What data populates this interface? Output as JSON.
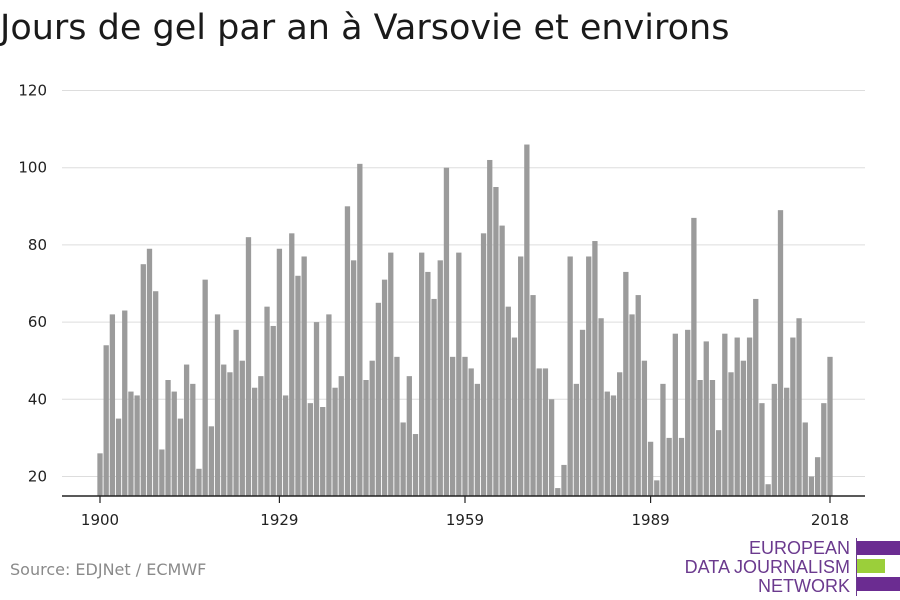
{
  "title": "Jours de gel par an à Varsovie et environs",
  "source": "Source: EDJNet / ECMWF",
  "logo": {
    "lines": [
      "EUROPEAN",
      "DATA JOURNALISM",
      "NETWORK"
    ],
    "colors": {
      "text": "#6b3a8e",
      "purple": "#6b2c91",
      "green": "#9bcf3a"
    }
  },
  "chart_data": {
    "type": "bar",
    "title": "Jours de gel par an à Varsovie et environs",
    "xlabel": "",
    "ylabel": "",
    "ylim": [
      15,
      120
    ],
    "yticks": [
      20,
      40,
      60,
      80,
      100,
      120
    ],
    "xticks": [
      1900,
      1929,
      1959,
      1989,
      2018
    ],
    "grid": true,
    "bar_color": "#9b9b9b",
    "x_start": 1900,
    "values": [
      26,
      54,
      62,
      35,
      63,
      42,
      41,
      75,
      79,
      68,
      27,
      45,
      42,
      35,
      49,
      44,
      22,
      71,
      33,
      62,
      49,
      47,
      58,
      50,
      82,
      43,
      46,
      64,
      59,
      79,
      41,
      83,
      72,
      77,
      39,
      60,
      38,
      62,
      43,
      46,
      90,
      76,
      101,
      45,
      50,
      65,
      71,
      78,
      51,
      34,
      46,
      31,
      78,
      73,
      66,
      76,
      100,
      51,
      78,
      51,
      48,
      44,
      83,
      102,
      95,
      85,
      64,
      56,
      77,
      106,
      67,
      48,
      48,
      40,
      17,
      23,
      77,
      44,
      58,
      77,
      81,
      61,
      42,
      41,
      47,
      73,
      62,
      67,
      50,
      29,
      19,
      44,
      30,
      57,
      30,
      58,
      87,
      45,
      55,
      45,
      32,
      57,
      47,
      56,
      50,
      56,
      66,
      39,
      18,
      44,
      89,
      43,
      56,
      61,
      34,
      20,
      25,
      39,
      51
    ]
  }
}
